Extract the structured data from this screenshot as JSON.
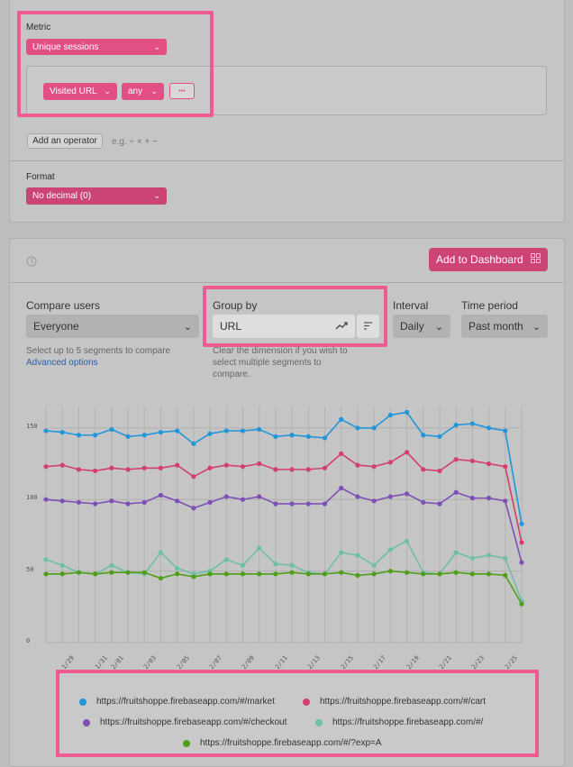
{
  "metric": {
    "label": "Metric",
    "selected": "Unique sessions",
    "filter_event": "Visited URL",
    "filter_value": "any",
    "more": "•••",
    "add_operator": "Add an operator",
    "operator_hint": "e.g. ÷ × + −"
  },
  "format": {
    "label": "Format",
    "selected": "No decimal (0)"
  },
  "toolbar": {
    "add_dashboard": "Add to Dashboard"
  },
  "controls": {
    "compare_label": "Compare users",
    "compare_value": "Everyone",
    "compare_hint": "Select up to 5 segments to compare",
    "advanced": "Advanced options",
    "group_label": "Group by",
    "group_value": "URL",
    "group_hint_1": "Clear the dimension if you wish to",
    "group_hint_2": "select multiple segments to",
    "group_hint_3": "compare.",
    "interval_label": "Interval",
    "interval_value": "Daily",
    "period_label": "Time period",
    "period_value": "Past month"
  },
  "colors": {
    "accent": "#e24f84",
    "highlight": "#ee5a92",
    "link": "#2a5fa8"
  },
  "chart_data": {
    "type": "line",
    "x": [
      "1/28",
      "1/29",
      "1/30",
      "1/31",
      "2/01",
      "2/02",
      "2/03",
      "2/04",
      "2/05",
      "2/06",
      "2/07",
      "2/08",
      "2/09",
      "2/10",
      "2/11",
      "2/12",
      "2/13",
      "2/14",
      "2/15",
      "2/16",
      "2/17",
      "2/18",
      "2/19",
      "2/20",
      "2/21",
      "2/22",
      "2/23",
      "2/24",
      "2/25",
      "2/26"
    ],
    "x_tick_labels": [
      "1/29",
      "1/31",
      "2/01",
      "2/03",
      "2/05",
      "2/07",
      "2/09",
      "2/11",
      "2/13",
      "2/15",
      "2/17",
      "2/19",
      "2/21",
      "2/23",
      "2/25"
    ],
    "y_ticks": [
      0,
      50,
      100,
      150
    ],
    "ylim": [
      0,
      165
    ],
    "series": [
      {
        "name": "https://fruitshoppe.firebaseapp.com/#/market",
        "color": "#2196d8",
        "values": [
          148,
          147,
          145,
          145,
          149,
          144,
          145,
          147,
          148,
          139,
          146,
          148,
          148,
          149,
          144,
          145,
          144,
          143,
          156,
          150,
          150,
          159,
          161,
          145,
          144,
          152,
          153,
          150,
          148,
          83
        ]
      },
      {
        "name": "https://fruitshoppe.firebaseapp.com/#/cart",
        "color": "#d33f6f",
        "values": [
          123,
          124,
          121,
          120,
          122,
          121,
          122,
          122,
          124,
          116,
          122,
          124,
          123,
          125,
          121,
          121,
          121,
          122,
          132,
          124,
          123,
          126,
          133,
          121,
          120,
          128,
          127,
          125,
          123,
          70
        ]
      },
      {
        "name": "https://fruitshoppe.firebaseapp.com/#/checkout",
        "color": "#7e4fb5",
        "values": [
          100,
          99,
          98,
          97,
          99,
          97,
          98,
          103,
          99,
          94,
          98,
          102,
          100,
          102,
          97,
          97,
          97,
          97,
          108,
          102,
          99,
          102,
          104,
          98,
          97,
          105,
          101,
          101,
          99,
          56
        ]
      },
      {
        "name": "https://fruitshoppe.firebaseapp.com/#/",
        "color": "#6ebfa6",
        "values": [
          58,
          54,
          49,
          48,
          54,
          49,
          48,
          63,
          52,
          48,
          50,
          58,
          54,
          66,
          55,
          54,
          49,
          48,
          63,
          61,
          54,
          65,
          71,
          49,
          48,
          63,
          59,
          61,
          59,
          29
        ]
      },
      {
        "name": "https://fruitshoppe.firebaseapp.com/#/?exp=A",
        "color": "#4f9e1a",
        "values": [
          48,
          48,
          49,
          48,
          49,
          49,
          49,
          45,
          48,
          46,
          48,
          48,
          48,
          48,
          48,
          49,
          48,
          48,
          49,
          47,
          48,
          50,
          49,
          48,
          48,
          49,
          48,
          48,
          47,
          27
        ]
      }
    ]
  }
}
